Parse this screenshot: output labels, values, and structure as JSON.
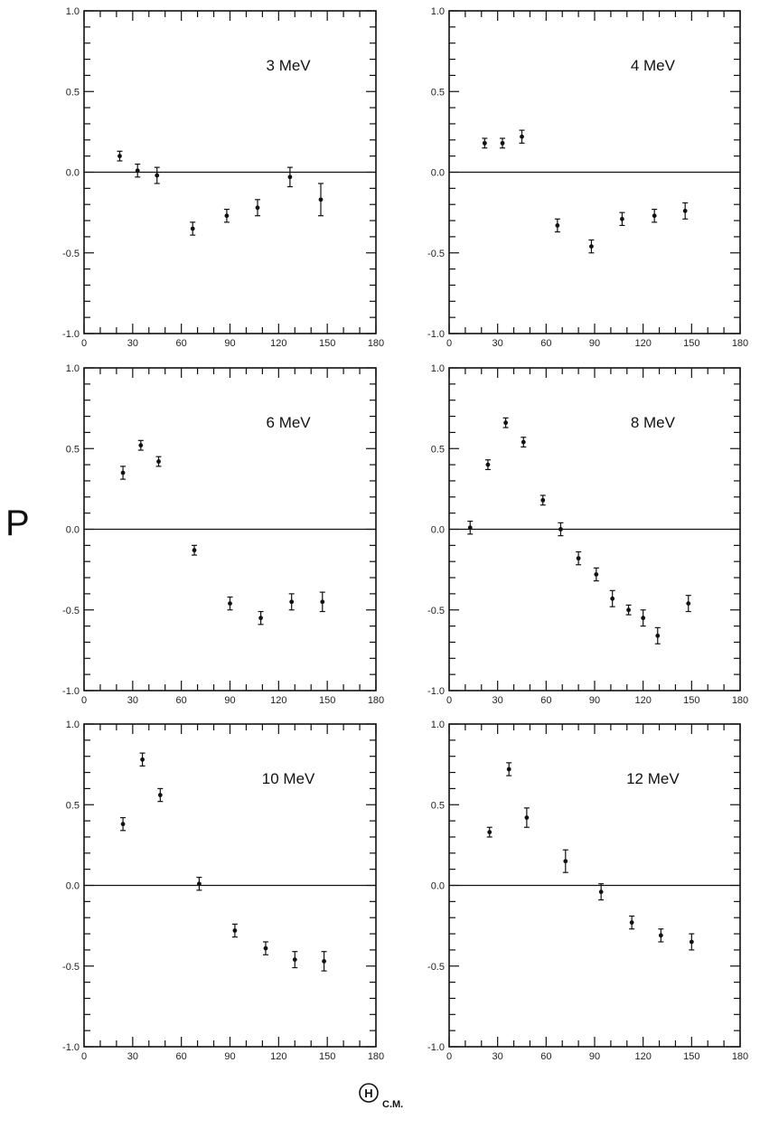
{
  "figure": {
    "ylabel": "P",
    "xlabel_symbol": "H",
    "xlabel_subscript": "C.M."
  },
  "chart_data": [
    {
      "type": "scatter",
      "annotation": "3 MeV",
      "xlim": [
        0,
        180
      ],
      "ylim": [
        -1.0,
        1.0
      ],
      "xticks": [
        0,
        30,
        60,
        90,
        120,
        150,
        180
      ],
      "yticks": [
        -1.0,
        -0.5,
        0.0,
        0.5,
        1.0
      ],
      "xtick_labels": [
        "0",
        "30",
        "60",
        "90",
        "120",
        "150",
        "180"
      ],
      "ytick_labels": [
        "-1.0",
        "-0.5",
        "0.0",
        "0.5",
        "1.0"
      ],
      "points": [
        {
          "x": 22,
          "y": 0.1,
          "err": 0.03
        },
        {
          "x": 33,
          "y": 0.01,
          "err": 0.04
        },
        {
          "x": 45,
          "y": -0.02,
          "err": 0.05
        },
        {
          "x": 67,
          "y": -0.35,
          "err": 0.04
        },
        {
          "x": 88,
          "y": -0.27,
          "err": 0.04
        },
        {
          "x": 107,
          "y": -0.22,
          "err": 0.05
        },
        {
          "x": 127,
          "y": -0.03,
          "err": 0.06
        },
        {
          "x": 146,
          "y": -0.17,
          "err": 0.1
        }
      ]
    },
    {
      "type": "scatter",
      "annotation": "4 MeV",
      "xlim": [
        0,
        180
      ],
      "ylim": [
        -1.0,
        1.0
      ],
      "xticks": [
        0,
        30,
        60,
        90,
        120,
        150,
        180
      ],
      "yticks": [
        -1.0,
        -0.5,
        0.0,
        0.5,
        1.0
      ],
      "xtick_labels": [
        "0",
        "30",
        "60",
        "90",
        "120",
        "150",
        "180"
      ],
      "ytick_labels": [
        "-1.0",
        "-0.5",
        "0.0",
        "0.5",
        "1.0"
      ],
      "points": [
        {
          "x": 22,
          "y": 0.18,
          "err": 0.03
        },
        {
          "x": 33,
          "y": 0.18,
          "err": 0.03
        },
        {
          "x": 45,
          "y": 0.22,
          "err": 0.04
        },
        {
          "x": 67,
          "y": -0.33,
          "err": 0.04
        },
        {
          "x": 88,
          "y": -0.46,
          "err": 0.04
        },
        {
          "x": 107,
          "y": -0.29,
          "err": 0.04
        },
        {
          "x": 127,
          "y": -0.27,
          "err": 0.04
        },
        {
          "x": 146,
          "y": -0.24,
          "err": 0.05
        }
      ]
    },
    {
      "type": "scatter",
      "annotation": "6 MeV",
      "xlim": [
        0,
        180
      ],
      "ylim": [
        -1.0,
        1.0
      ],
      "xticks": [
        0,
        30,
        60,
        90,
        120,
        150,
        180
      ],
      "yticks": [
        -1.0,
        -0.5,
        0.0,
        0.5,
        1.0
      ],
      "xtick_labels": [
        "0",
        "30",
        "60",
        "90",
        "120",
        "150",
        "180"
      ],
      "ytick_labels": [
        "-1.0",
        "-0.5",
        "0.0",
        "0.5",
        "1.0"
      ],
      "points": [
        {
          "x": 24,
          "y": 0.35,
          "err": 0.04
        },
        {
          "x": 35,
          "y": 0.52,
          "err": 0.03
        },
        {
          "x": 46,
          "y": 0.42,
          "err": 0.03
        },
        {
          "x": 68,
          "y": -0.13,
          "err": 0.03
        },
        {
          "x": 90,
          "y": -0.46,
          "err": 0.04
        },
        {
          "x": 109,
          "y": -0.55,
          "err": 0.04
        },
        {
          "x": 128,
          "y": -0.45,
          "err": 0.05
        },
        {
          "x": 147,
          "y": -0.45,
          "err": 0.06
        }
      ]
    },
    {
      "type": "scatter",
      "annotation": "8 MeV",
      "xlim": [
        0,
        180
      ],
      "ylim": [
        -1.0,
        1.0
      ],
      "xticks": [
        0,
        30,
        60,
        90,
        120,
        150,
        180
      ],
      "yticks": [
        -1.0,
        -0.5,
        0.0,
        0.5,
        1.0
      ],
      "xtick_labels": [
        "0",
        "30",
        "60",
        "90",
        "120",
        "150",
        "180"
      ],
      "ytick_labels": [
        "-1.0",
        "-0.5",
        "0.0",
        "0.5",
        "1.0"
      ],
      "points": [
        {
          "x": 13,
          "y": 0.01,
          "err": 0.04
        },
        {
          "x": 24,
          "y": 0.4,
          "err": 0.03
        },
        {
          "x": 35,
          "y": 0.66,
          "err": 0.03
        },
        {
          "x": 46,
          "y": 0.54,
          "err": 0.03
        },
        {
          "x": 58,
          "y": 0.18,
          "err": 0.03
        },
        {
          "x": 69,
          "y": 0.0,
          "err": 0.04
        },
        {
          "x": 80,
          "y": -0.18,
          "err": 0.04
        },
        {
          "x": 91,
          "y": -0.28,
          "err": 0.04
        },
        {
          "x": 101,
          "y": -0.43,
          "err": 0.05
        },
        {
          "x": 111,
          "y": -0.5,
          "err": 0.03
        },
        {
          "x": 120,
          "y": -0.55,
          "err": 0.05
        },
        {
          "x": 129,
          "y": -0.66,
          "err": 0.05
        },
        {
          "x": 148,
          "y": -0.46,
          "err": 0.05
        }
      ]
    },
    {
      "type": "scatter",
      "annotation": "10 MeV",
      "xlim": [
        0,
        180
      ],
      "ylim": [
        -1.0,
        1.0
      ],
      "xticks": [
        0,
        30,
        60,
        90,
        120,
        150,
        180
      ],
      "yticks": [
        -1.0,
        -0.5,
        0.0,
        0.5,
        1.0
      ],
      "xtick_labels": [
        "0",
        "30",
        "60",
        "90",
        "120",
        "150",
        "180"
      ],
      "ytick_labels": [
        "-1.0",
        "-0.5",
        "0.0",
        "0.5",
        "1.0"
      ],
      "points": [
        {
          "x": 24,
          "y": 0.38,
          "err": 0.04
        },
        {
          "x": 36,
          "y": 0.78,
          "err": 0.04
        },
        {
          "x": 47,
          "y": 0.56,
          "err": 0.04
        },
        {
          "x": 71,
          "y": 0.01,
          "err": 0.04
        },
        {
          "x": 93,
          "y": -0.28,
          "err": 0.04
        },
        {
          "x": 112,
          "y": -0.39,
          "err": 0.04
        },
        {
          "x": 130,
          "y": -0.46,
          "err": 0.05
        },
        {
          "x": 148,
          "y": -0.47,
          "err": 0.06
        }
      ]
    },
    {
      "type": "scatter",
      "annotation": "12 MeV",
      "xlim": [
        0,
        180
      ],
      "ylim": [
        -1.0,
        1.0
      ],
      "xticks": [
        0,
        30,
        60,
        90,
        120,
        150,
        180
      ],
      "yticks": [
        -1.0,
        -0.5,
        0.0,
        0.5,
        1.0
      ],
      "xtick_labels": [
        "0",
        "30",
        "60",
        "90",
        "120",
        "150",
        "180"
      ],
      "ytick_labels": [
        "-1.0",
        "-0.5",
        "0.0",
        "0.5",
        "1.0"
      ],
      "points": [
        {
          "x": 25,
          "y": 0.33,
          "err": 0.03
        },
        {
          "x": 37,
          "y": 0.72,
          "err": 0.04
        },
        {
          "x": 48,
          "y": 0.42,
          "err": 0.06
        },
        {
          "x": 72,
          "y": 0.15,
          "err": 0.07
        },
        {
          "x": 94,
          "y": -0.04,
          "err": 0.05
        },
        {
          "x": 113,
          "y": -0.23,
          "err": 0.04
        },
        {
          "x": 131,
          "y": -0.31,
          "err": 0.04
        },
        {
          "x": 150,
          "y": -0.35,
          "err": 0.05
        }
      ]
    }
  ]
}
